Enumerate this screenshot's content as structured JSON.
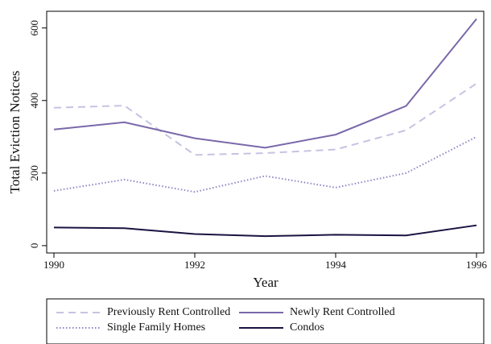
{
  "chart_data": {
    "type": "line",
    "x_label": "Year",
    "y_label": "Total Eviction Notices",
    "x": [
      1990,
      1991,
      1992,
      1993,
      1994,
      1995,
      1996
    ],
    "xlim": [
      1990,
      1996
    ],
    "xticks": [
      1990,
      1992,
      1994,
      1996
    ],
    "ylim": [
      -18,
      646
    ],
    "yticks": [
      0,
      200,
      400,
      600
    ],
    "legend": "bottom",
    "series": [
      {
        "name": "Previously Rent Controlled",
        "color": "#c6c3e2",
        "dash": "9,6",
        "values": [
          380,
          386,
          250,
          255,
          265,
          318,
          447
        ]
      },
      {
        "name": "Newly Rent Controlled",
        "color": "#7a68aa",
        "dash": "none",
        "values": [
          320,
          340,
          296,
          270,
          306,
          385,
          625
        ]
      },
      {
        "name": "Single Family Homes",
        "color": "#8f86c4",
        "dash": "1.5,2.5",
        "values": [
          151,
          182,
          148,
          192,
          160,
          200,
          300
        ]
      },
      {
        "name": "Condos",
        "color": "#1c1242",
        "dash": "none",
        "values": [
          50,
          48,
          32,
          26,
          30,
          28,
          56
        ]
      }
    ]
  }
}
